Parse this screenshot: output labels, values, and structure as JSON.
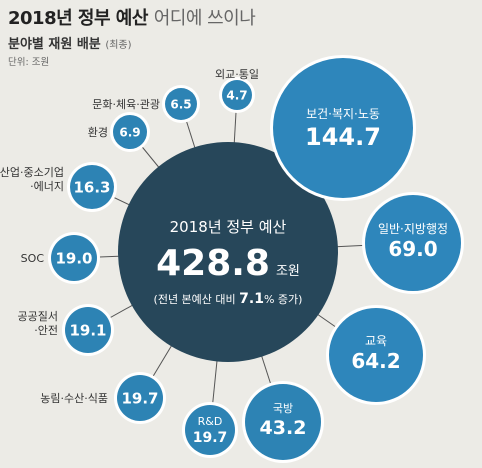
{
  "header": {
    "title_bold": "2018년 정부 예산",
    "title_light": "어디에 쓰이나",
    "subtitle": "분야별 재원 배분",
    "subtitle_note": "(최종)",
    "unit": "단위: 조원"
  },
  "center": {
    "title": "2018년 정부 예산",
    "total": "428.8",
    "total_unit": "조원",
    "note_prefix": "(전년 본예산 대비 ",
    "note_value": "7.1",
    "note_suffix": "% 증가)"
  },
  "chart_data": {
    "type": "bubble",
    "title": "2018년 정부 예산 어디에 쓰이나",
    "unit": "조원",
    "total": 428.8,
    "categories": [
      "보건·복지·노동",
      "일반·지방행정",
      "교육",
      "국방",
      "R&D",
      "농림·수산·식품",
      "공공질서·안전",
      "SOC",
      "산업·중소기업·에너지",
      "환경",
      "문화·체육·관광",
      "외교·통일"
    ],
    "values": [
      144.7,
      69.0,
      64.2,
      43.2,
      19.7,
      19.7,
      19.1,
      19.0,
      16.3,
      6.9,
      6.5,
      4.7
    ],
    "labels": [
      "144.7",
      "69.0",
      "64.2",
      "43.2",
      "19.7",
      "19.7",
      "19.1",
      "19.0",
      "16.3",
      "6.9",
      "6.5",
      "4.7"
    ],
    "label_lines": [
      [
        "보건·복지·노동"
      ],
      [
        "일반·지방행정"
      ],
      [
        "교육"
      ],
      [
        "국방"
      ],
      [
        "R&D"
      ],
      [
        "농림·수산·식품"
      ],
      [
        "공공질서",
        "·안전"
      ],
      [
        "SOC"
      ],
      [
        "산업·중소기업",
        "·에너지"
      ],
      [
        "환경"
      ],
      [
        "문화·체육·관광"
      ],
      [
        "외교·통일"
      ]
    ]
  },
  "colors": {
    "center_fill": "#27475a",
    "bubble_fill": "#2d83b4",
    "large_bubble_fill": "#2e86bb",
    "background": "#ecebe6",
    "spoke": "#555555"
  }
}
